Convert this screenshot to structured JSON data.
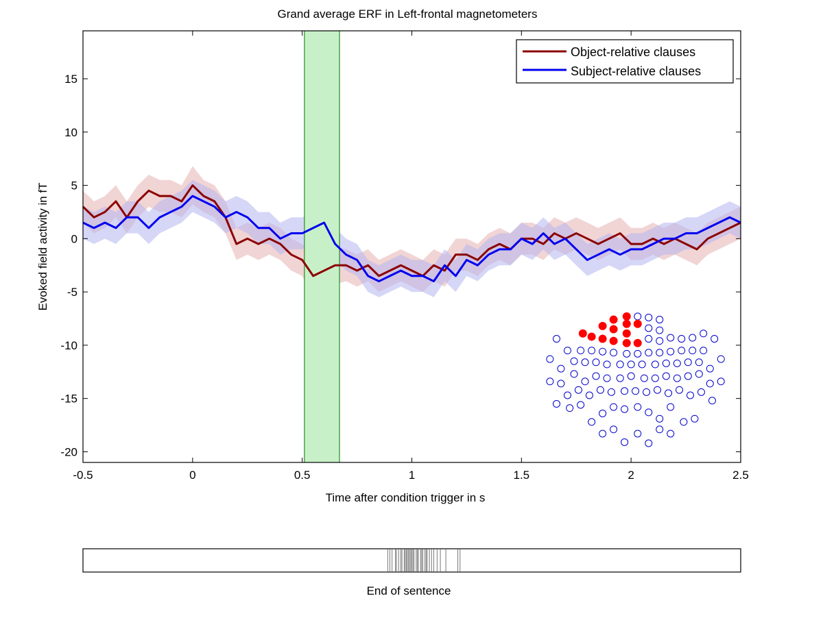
{
  "chart_data": [
    {
      "type": "line",
      "title": "Grand average ERF in Left-frontal magnetometers",
      "xlabel": "Time after condition trigger in s",
      "ylabel": "Evoked field activity in fT",
      "xlim": [
        -0.5,
        2.5
      ],
      "ylim": [
        -21,
        19.5
      ],
      "xticks": [
        -0.5,
        0,
        0.5,
        1,
        1.5,
        2,
        2.5
      ],
      "xtick_labels": [
        "-0.5",
        "0",
        "0.5",
        "1",
        "1.5",
        "2",
        "2.5"
      ],
      "yticks": [
        -20,
        -15,
        -10,
        -5,
        0,
        5,
        10,
        15
      ],
      "ytick_labels": [
        "-20",
        "-15",
        "-10",
        "-5",
        "0",
        "5",
        "10",
        "15"
      ],
      "legend_position": "top-right",
      "highlight_window": [
        0.51,
        0.67
      ],
      "series": [
        {
          "name": "Object-relative clauses",
          "color": "#8b0000",
          "band_color": "#e6b0b0",
          "x": [
            -0.5,
            -0.45,
            -0.4,
            -0.35,
            -0.3,
            -0.25,
            -0.2,
            -0.15,
            -0.1,
            -0.05,
            0,
            0.05,
            0.1,
            0.15,
            0.2,
            0.25,
            0.3,
            0.35,
            0.4,
            0.45,
            0.5,
            0.55,
            0.6,
            0.65,
            0.7,
            0.75,
            0.8,
            0.85,
            0.9,
            0.95,
            1,
            1.05,
            1.1,
            1.15,
            1.2,
            1.25,
            1.3,
            1.35,
            1.4,
            1.45,
            1.5,
            1.55,
            1.6,
            1.65,
            1.7,
            1.75,
            1.8,
            1.85,
            1.9,
            1.95,
            2,
            2.05,
            2.1,
            2.15,
            2.2,
            2.25,
            2.3,
            2.35,
            2.4,
            2.45,
            2.5
          ],
          "y": [
            3,
            2,
            2.5,
            3.5,
            2,
            3.5,
            4.5,
            4,
            4,
            3.5,
            5,
            4,
            3.5,
            2,
            -0.5,
            0,
            -0.5,
            0,
            -0.5,
            -1.5,
            -2,
            -3.5,
            -3,
            -2.5,
            -2.5,
            -3,
            -2.5,
            -3.5,
            -3,
            -2.5,
            -3,
            -3.5,
            -2.5,
            -3,
            -1.5,
            -1.5,
            -2,
            -1,
            -0.5,
            -1,
            0,
            0,
            -0.5,
            0.5,
            0,
            0.5,
            0,
            -0.5,
            0,
            0.5,
            -0.5,
            -0.5,
            0,
            -0.5,
            0,
            -0.5,
            -1,
            0,
            0.5,
            1,
            1.5
          ],
          "band": [
            1.5,
            1.5,
            1.5,
            1.5,
            1.5,
            1.5,
            1.5,
            1.5,
            1.5,
            1.5,
            1.8,
            1.5,
            1.5,
            1.5,
            1.5,
            1.5,
            1.5,
            1.5,
            1.5,
            1.5,
            1.5,
            1.8,
            1.8,
            1.8,
            1.5,
            1.5,
            1.5,
            1.5,
            1.5,
            1.5,
            1.5,
            1.5,
            1.5,
            1.5,
            1.5,
            1.5,
            1.5,
            1.5,
            1.5,
            1.5,
            1.5,
            1.5,
            1.5,
            1.5,
            1.5,
            1.5,
            1.5,
            1.5,
            1.5,
            1.5,
            1.5,
            1.5,
            1.5,
            1.5,
            1.5,
            1.5,
            1.5,
            1.5,
            1.5,
            1.5,
            1.5
          ]
        },
        {
          "name": "Subject-relative clauses",
          "color": "#0000ee",
          "band_color": "#b4b4f0",
          "x": [
            -0.5,
            -0.45,
            -0.4,
            -0.35,
            -0.3,
            -0.25,
            -0.2,
            -0.15,
            -0.1,
            -0.05,
            0,
            0.05,
            0.1,
            0.15,
            0.2,
            0.25,
            0.3,
            0.35,
            0.4,
            0.45,
            0.5,
            0.55,
            0.6,
            0.65,
            0.7,
            0.75,
            0.8,
            0.85,
            0.9,
            0.95,
            1,
            1.05,
            1.1,
            1.15,
            1.2,
            1.25,
            1.3,
            1.35,
            1.4,
            1.45,
            1.5,
            1.55,
            1.6,
            1.65,
            1.7,
            1.75,
            1.8,
            1.85,
            1.9,
            1.95,
            2,
            2.05,
            2.1,
            2.15,
            2.2,
            2.25,
            2.3,
            2.35,
            2.4,
            2.45,
            2.5
          ],
          "y": [
            1.5,
            1,
            1.5,
            1,
            2,
            2,
            1,
            2,
            2.5,
            3,
            4,
            3.5,
            3,
            2,
            2.5,
            2,
            1,
            1,
            0,
            0.5,
            0.5,
            1,
            1.5,
            -0.5,
            -1.5,
            -2,
            -3.5,
            -4,
            -3.5,
            -3,
            -3.5,
            -3.5,
            -4,
            -2.5,
            -3.5,
            -2,
            -2.5,
            -1.5,
            -1,
            -1,
            0,
            -0.5,
            0.5,
            -0.5,
            0,
            -1,
            -2,
            -1.5,
            -1,
            -1.5,
            -1,
            -1,
            -0.5,
            0,
            0,
            0.5,
            0.5,
            1,
            1.5,
            2,
            1.5
          ],
          "band": [
            1.5,
            1.5,
            1.5,
            1.5,
            1.5,
            1.5,
            1.5,
            1.5,
            1.5,
            1.5,
            1.5,
            1.5,
            1.5,
            1.5,
            1.5,
            1.5,
            1.5,
            1.5,
            1.5,
            1.5,
            1.5,
            1.5,
            1.5,
            1.5,
            1.5,
            1.5,
            1.5,
            1.5,
            1.5,
            1.5,
            1.5,
            1.5,
            1.5,
            1.5,
            1.5,
            1.5,
            1.5,
            1.5,
            1.5,
            1.5,
            1.5,
            1.5,
            1.5,
            1.5,
            1.5,
            1.5,
            1.5,
            1.5,
            1.5,
            1.5,
            1.5,
            1.5,
            1.5,
            1.5,
            1.5,
            1.5,
            1.5,
            1.5,
            1.5,
            1.5,
            1.5
          ]
        }
      ],
      "sensors": {
        "selected_color": "#ff0000",
        "unselected_color": "#0000cc",
        "selected": [
          [
            1.78,
            -8.9
          ],
          [
            1.82,
            -9.2
          ],
          [
            1.87,
            -8.2
          ],
          [
            1.87,
            -9.4
          ],
          [
            1.92,
            -7.6
          ],
          [
            1.92,
            -8.5
          ],
          [
            1.92,
            -9.6
          ],
          [
            1.98,
            -7.3
          ],
          [
            1.98,
            -8.0
          ],
          [
            1.98,
            -8.9
          ],
          [
            1.98,
            -9.8
          ],
          [
            2.03,
            -8.0
          ],
          [
            2.03,
            -9.8
          ]
        ],
        "unselected": [
          [
            2.03,
            -7.3
          ],
          [
            2.08,
            -7.4
          ],
          [
            2.08,
            -8.4
          ],
          [
            2.08,
            -9.4
          ],
          [
            2.13,
            -7.6
          ],
          [
            2.13,
            -8.6
          ],
          [
            2.13,
            -9.6
          ],
          [
            2.18,
            -9.3
          ],
          [
            2.23,
            -9.4
          ],
          [
            2.28,
            -9.3
          ],
          [
            2.33,
            -8.9
          ],
          [
            2.38,
            -9.4
          ],
          [
            1.66,
            -9.4
          ],
          [
            1.71,
            -10.5
          ],
          [
            1.77,
            -10.5
          ],
          [
            1.82,
            -10.5
          ],
          [
            1.87,
            -10.6
          ],
          [
            1.92,
            -10.7
          ],
          [
            1.98,
            -10.8
          ],
          [
            2.03,
            -10.8
          ],
          [
            2.08,
            -10.7
          ],
          [
            2.13,
            -10.7
          ],
          [
            2.18,
            -10.6
          ],
          [
            2.23,
            -10.5
          ],
          [
            2.28,
            -10.5
          ],
          [
            2.33,
            -10.5
          ],
          [
            1.63,
            -11.3
          ],
          [
            1.68,
            -12.2
          ],
          [
            1.74,
            -11.5
          ],
          [
            1.79,
            -11.6
          ],
          [
            1.84,
            -11.6
          ],
          [
            1.89,
            -11.8
          ],
          [
            1.95,
            -11.8
          ],
          [
            2.0,
            -11.8
          ],
          [
            2.05,
            -11.8
          ],
          [
            2.11,
            -11.8
          ],
          [
            2.16,
            -11.7
          ],
          [
            2.21,
            -11.7
          ],
          [
            2.26,
            -11.6
          ],
          [
            2.31,
            -11.6
          ],
          [
            2.36,
            -12.2
          ],
          [
            2.41,
            -11.3
          ],
          [
            1.63,
            -13.4
          ],
          [
            1.68,
            -13.6
          ],
          [
            1.74,
            -12.7
          ],
          [
            1.79,
            -13.4
          ],
          [
            1.84,
            -12.9
          ],
          [
            1.89,
            -13.1
          ],
          [
            1.95,
            -13.1
          ],
          [
            2.0,
            -12.9
          ],
          [
            2.06,
            -13.1
          ],
          [
            2.11,
            -13.1
          ],
          [
            2.16,
            -12.9
          ],
          [
            2.21,
            -13.1
          ],
          [
            2.26,
            -12.9
          ],
          [
            2.31,
            -12.7
          ],
          [
            2.36,
            -13.6
          ],
          [
            2.41,
            -13.4
          ],
          [
            1.66,
            -15.5
          ],
          [
            1.71,
            -14.7
          ],
          [
            1.76,
            -14.2
          ],
          [
            1.81,
            -14.7
          ],
          [
            1.86,
            -14.2
          ],
          [
            1.91,
            -14.4
          ],
          [
            1.97,
            -14.3
          ],
          [
            2.02,
            -14.3
          ],
          [
            2.07,
            -14.4
          ],
          [
            2.12,
            -14.2
          ],
          [
            2.17,
            -14.5
          ],
          [
            2.22,
            -14.2
          ],
          [
            2.27,
            -14.7
          ],
          [
            2.32,
            -14.4
          ],
          [
            2.37,
            -15.2
          ],
          [
            1.72,
            -15.9
          ],
          [
            1.77,
            -15.6
          ],
          [
            1.82,
            -17.2
          ],
          [
            1.87,
            -16.4
          ],
          [
            1.92,
            -15.8
          ],
          [
            1.97,
            -16.0
          ],
          [
            2.03,
            -15.8
          ],
          [
            2.08,
            -16.3
          ],
          [
            2.13,
            -16.9
          ],
          [
            2.18,
            -15.8
          ],
          [
            2.24,
            -17.2
          ],
          [
            2.29,
            -16.9
          ],
          [
            1.87,
            -18.3
          ],
          [
            1.92,
            -17.9
          ],
          [
            1.97,
            -19.1
          ],
          [
            2.03,
            -18.3
          ],
          [
            2.08,
            -19.2
          ],
          [
            2.13,
            -17.9
          ],
          [
            2.18,
            -18.3
          ]
        ]
      }
    },
    {
      "type": "event-raster",
      "xlabel": "End of sentence",
      "xlim": [
        -0.5,
        2.5
      ],
      "events": [
        0.89,
        0.9,
        0.91,
        0.925,
        0.93,
        0.94,
        0.95,
        0.955,
        0.965,
        0.97,
        0.975,
        0.98,
        0.985,
        0.99,
        0.995,
        1.0,
        1.005,
        1.01,
        1.02,
        1.025,
        1.03,
        1.04,
        1.045,
        1.05,
        1.06,
        1.065,
        1.07,
        1.08,
        1.09,
        1.1,
        1.115,
        1.13,
        1.155,
        1.21,
        1.22
      ]
    }
  ]
}
